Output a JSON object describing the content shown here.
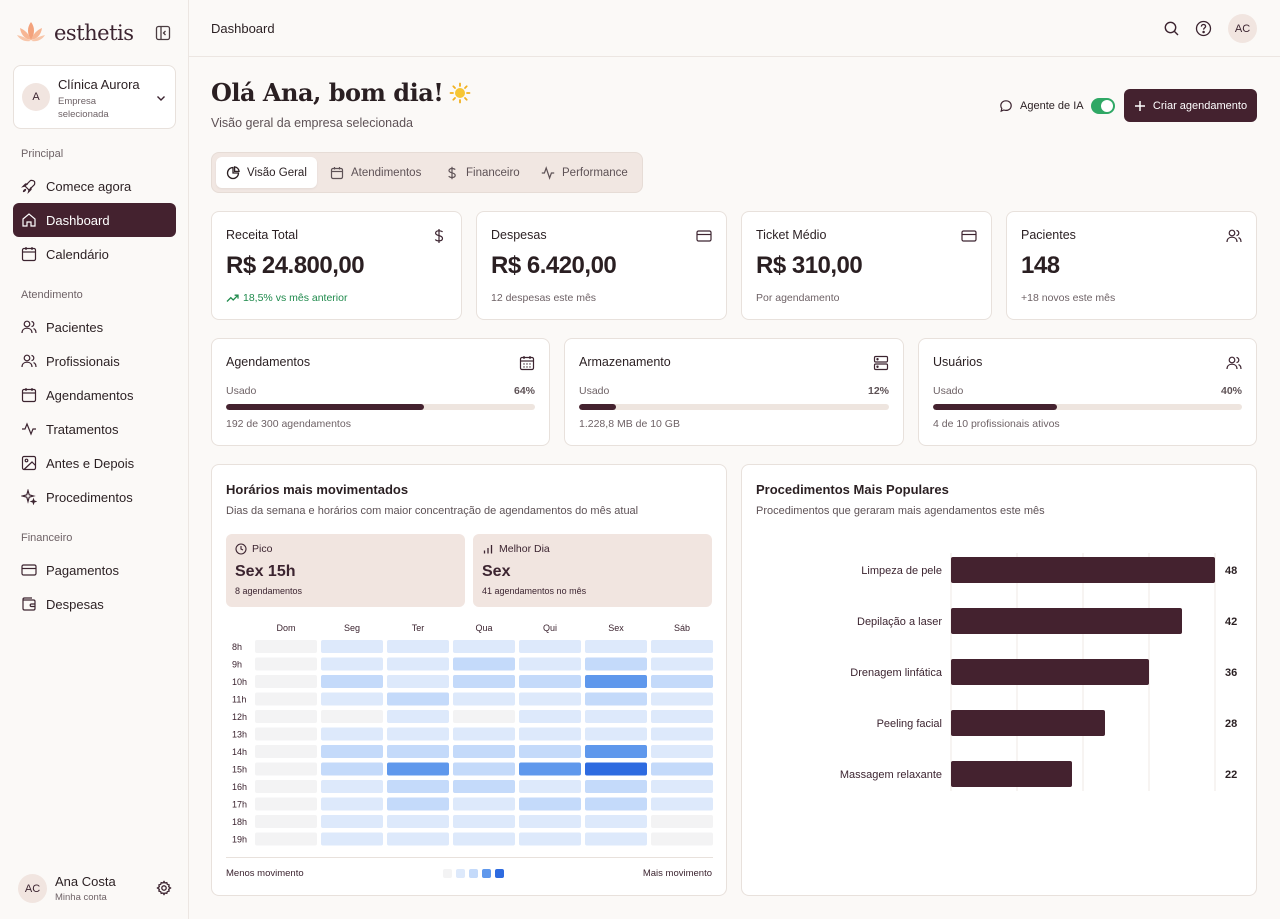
{
  "app": {
    "brand": "esthetis",
    "company": {
      "avatar": "A",
      "name": "Clínica Aurora",
      "subtitle": "Empresa selecionada"
    },
    "user": {
      "initials": "AC",
      "name": "Ana Costa",
      "subtitle": "Minha conta"
    }
  },
  "sidebar": {
    "sections": [
      {
        "label": "Principal",
        "items": [
          {
            "label": "Comece agora",
            "icon": "rocket-icon"
          },
          {
            "label": "Dashboard",
            "icon": "home-icon",
            "active": true
          },
          {
            "label": "Calendário",
            "icon": "calendar-icon"
          }
        ]
      },
      {
        "label": "Atendimento",
        "items": [
          {
            "label": "Pacientes",
            "icon": "users-icon"
          },
          {
            "label": "Profissionais",
            "icon": "users-icon"
          },
          {
            "label": "Agendamentos",
            "icon": "calendar-icon"
          },
          {
            "label": "Tratamentos",
            "icon": "activity-icon"
          },
          {
            "label": "Antes e Depois",
            "icon": "image-icon"
          },
          {
            "label": "Procedimentos",
            "icon": "sparkles-icon"
          }
        ]
      },
      {
        "label": "Financeiro",
        "items": [
          {
            "label": "Pagamentos",
            "icon": "credit-card-icon"
          },
          {
            "label": "Despesas",
            "icon": "wallet-icon"
          }
        ]
      }
    ]
  },
  "topbar": {
    "title": "Dashboard",
    "avatar": "AC"
  },
  "header": {
    "greeting": "Olá Ana, bom dia!",
    "subtitle": "Visão geral da empresa selecionada",
    "agent_label": "Agente de IA",
    "agent_enabled": true,
    "create_label": "Criar agendamento"
  },
  "tabs": [
    {
      "label": "Visão Geral",
      "icon": "pie-chart-icon",
      "active": true
    },
    {
      "label": "Atendimentos",
      "icon": "calendar-icon"
    },
    {
      "label": "Financeiro",
      "icon": "dollar-icon"
    },
    {
      "label": "Performance",
      "icon": "activity-icon"
    }
  ],
  "stats": [
    {
      "title": "Receita Total",
      "value": "R$ 24.800,00",
      "note": "18,5% vs mês anterior",
      "trend": "up",
      "icon": "dollar-icon"
    },
    {
      "title": "Despesas",
      "value": "R$ 6.420,00",
      "note": "12 despesas este mês",
      "icon": "credit-card-icon"
    },
    {
      "title": "Ticket Médio",
      "value": "R$ 310,00",
      "note": "Por agendamento",
      "icon": "credit-card-icon"
    },
    {
      "title": "Pacientes",
      "value": "148",
      "note": "+18 novos este mês",
      "icon": "users-icon"
    }
  ],
  "usage": [
    {
      "title": "Agendamentos",
      "label": "Usado",
      "pct_text": "64%",
      "fraction": 0.64,
      "note": "192 de 300 agendamentos",
      "icon": "calendar-icon"
    },
    {
      "title": "Armazenamento",
      "label": "Usado",
      "pct_text": "12%",
      "fraction": 0.12,
      "note": "1.228,8 MB de 10 GB",
      "icon": "server-icon"
    },
    {
      "title": "Usuários",
      "label": "Usado",
      "pct_text": "40%",
      "fraction": 0.4,
      "note": "4 de 10 profissionais ativos",
      "icon": "users-icon"
    }
  ],
  "heatmap": {
    "title": "Horários mais movimentados",
    "subtitle": "Dias da semana e horários com maior concentração de agendamentos do mês atual",
    "peak": {
      "label": "Pico",
      "value": "Sex 15h",
      "sub": "8 agendamentos",
      "icon": "clock-icon"
    },
    "best_day": {
      "label": "Melhor Dia",
      "value": "Sex",
      "sub": "41 agendamentos no mês",
      "icon": "bar-chart-icon"
    },
    "legend_less": "Menos movimento",
    "legend_more": "Mais movimento",
    "colors": [
      "#f3f3f4",
      "#dde9fb",
      "#c4dafa",
      "#8fb9f3",
      "#5f98ec",
      "#2e6be0"
    ]
  },
  "procedures": {
    "title": "Procedimentos Mais Populares",
    "subtitle": "Procedimentos que geraram mais agendamentos este mês"
  },
  "chart_data": [
    {
      "type": "heatmap",
      "columns": [
        "Dom",
        "Seg",
        "Ter",
        "Qua",
        "Qui",
        "Sex",
        "Sáb"
      ],
      "rows": [
        "8h",
        "9h",
        "10h",
        "11h",
        "12h",
        "13h",
        "14h",
        "15h",
        "16h",
        "17h",
        "18h",
        "19h"
      ],
      "values": [
        [
          0,
          1,
          1,
          1,
          1,
          1,
          1
        ],
        [
          0,
          1,
          1,
          2,
          1,
          2,
          1
        ],
        [
          0,
          2,
          1,
          2,
          2,
          4,
          2
        ],
        [
          0,
          1,
          2,
          1,
          1,
          2,
          1
        ],
        [
          0,
          0,
          1,
          0,
          1,
          1,
          1
        ],
        [
          0,
          1,
          1,
          1,
          1,
          1,
          1
        ],
        [
          0,
          2,
          2,
          2,
          2,
          4,
          1
        ],
        [
          0,
          2,
          4,
          2,
          4,
          5,
          2
        ],
        [
          0,
          1,
          2,
          2,
          1,
          2,
          1
        ],
        [
          0,
          1,
          2,
          1,
          2,
          2,
          1
        ],
        [
          0,
          1,
          1,
          1,
          1,
          1,
          0
        ],
        [
          0,
          1,
          1,
          1,
          1,
          1,
          0
        ]
      ],
      "scale_max": 5
    },
    {
      "type": "bar",
      "orientation": "horizontal",
      "categories": [
        "Limpeza de pele",
        "Depilação a laser",
        "Drenagem linfática",
        "Peeling facial",
        "Massagem relaxante"
      ],
      "values": [
        48,
        42,
        36,
        28,
        22
      ],
      "xlim": [
        0,
        48
      ],
      "color": "#44222f"
    }
  ]
}
